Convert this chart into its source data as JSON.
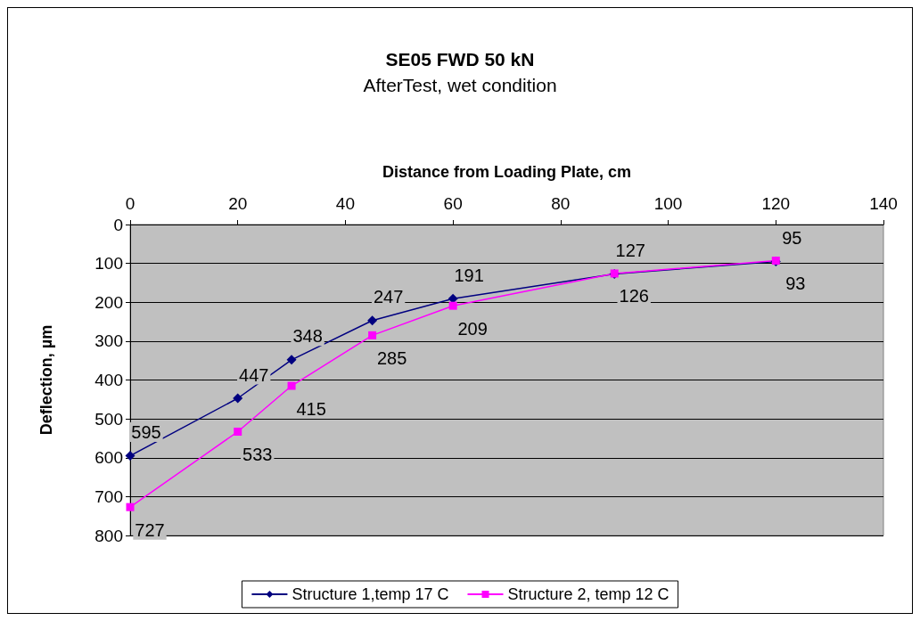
{
  "chart_data": {
    "type": "line",
    "title": "SE05 FWD 50 kN",
    "subtitle": "AfterTest, wet condition",
    "xlabel": "Distance from Loading Plate, cm",
    "ylabel": "Deflection, µm",
    "x": [
      0,
      20,
      30,
      45,
      60,
      90,
      120
    ],
    "series": [
      {
        "name": "Structure 1,temp 17 C",
        "color": "#000080",
        "marker": "diamond",
        "values": [
          595,
          447,
          348,
          247,
          191,
          127,
          95
        ]
      },
      {
        "name": "Structure 2, temp 12 C",
        "color": "#ff00ff",
        "marker": "square",
        "values": [
          727,
          533,
          415,
          285,
          209,
          126,
          93
        ]
      }
    ],
    "xlim": [
      0,
      140
    ],
    "xticks": [
      0,
      20,
      40,
      60,
      80,
      100,
      120,
      140
    ],
    "ylim": [
      800,
      0
    ],
    "yticks": [
      0,
      100,
      200,
      300,
      400,
      500,
      600,
      700,
      800
    ],
    "grid": "y",
    "legend": "bottom",
    "data_labels": true
  }
}
